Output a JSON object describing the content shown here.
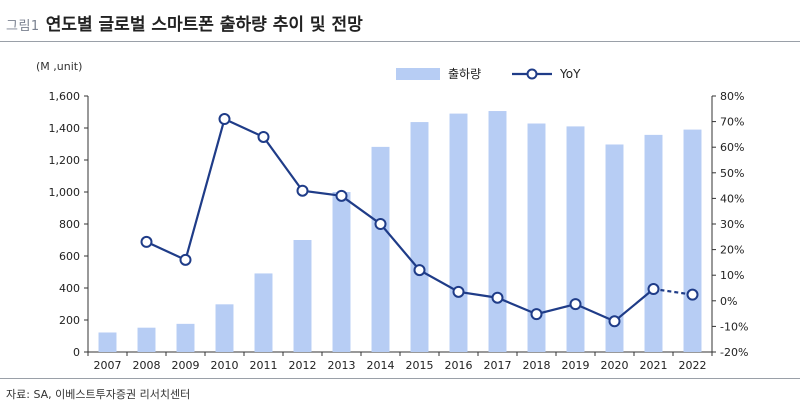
{
  "figure_label": "그림1",
  "title": "연도별 글로벌 스마트폰 출하량 추이 및 전망",
  "source": "자료: SA, 이베스트투자증권 리서치센터",
  "colors": {
    "bar": "#b7cdf4",
    "line": "#1f3c88",
    "axis": "#333333"
  },
  "chart_data": {
    "type": "bar",
    "categories": [
      "2007",
      "2008",
      "2009",
      "2010",
      "2011",
      "2012",
      "2013",
      "2014",
      "2015",
      "2016",
      "2017",
      "2018",
      "2019",
      "2020",
      "2021",
      "2022"
    ],
    "unit_label": "(M ,unit)",
    "series": [
      {
        "name": "출하량",
        "type": "bar",
        "axis": "left",
        "values": [
          122,
          152,
          176,
          298,
          491,
          700,
          1000,
          1282,
          1437,
          1490,
          1506,
          1428,
          1410,
          1297,
          1357,
          1390
        ]
      },
      {
        "name": "YoY",
        "type": "line",
        "axis": "right",
        "values": [
          null,
          23,
          16,
          71,
          64,
          43,
          41,
          30,
          12,
          3.5,
          1.2,
          -5.2,
          -1.3,
          -8,
          4.6,
          2.4
        ],
        "dashed_from_index": 14
      }
    ],
    "y_left": {
      "min": 0,
      "max": 1600,
      "ticks": [
        "0",
        "200",
        "400",
        "600",
        "800",
        "1,000",
        "1,200",
        "1,400",
        "1,600"
      ],
      "tick_values": [
        0,
        200,
        400,
        600,
        800,
        1000,
        1200,
        1400,
        1600
      ]
    },
    "y_right": {
      "min": -20,
      "max": 80,
      "ticks": [
        "-20%",
        "-10%",
        "0%",
        "10%",
        "20%",
        "30%",
        "40%",
        "50%",
        "60%",
        "70%",
        "80%"
      ],
      "tick_values": [
        -20,
        -10,
        0,
        10,
        20,
        30,
        40,
        50,
        60,
        70,
        80
      ]
    },
    "legend": {
      "position": "top-right",
      "items": [
        "출하량",
        "YoY"
      ]
    },
    "grid": false
  }
}
